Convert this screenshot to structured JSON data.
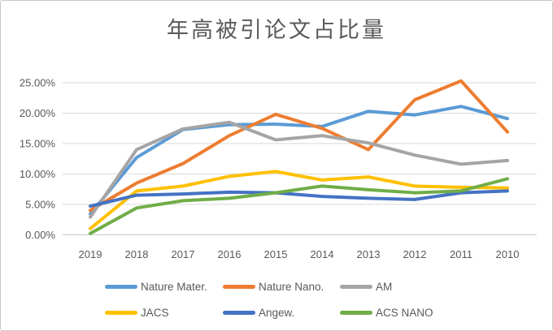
{
  "window": {
    "background": "#ffffff",
    "border_color": "#c9c9c9"
  },
  "chart_data": {
    "type": "line",
    "title": "年高被引论文占比量",
    "x": [
      "2019",
      "2018",
      "2017",
      "2016",
      "2015",
      "2014",
      "2013",
      "2012",
      "2011",
      "2010"
    ],
    "xlabel": "",
    "ylabel": "",
    "y_axis": {
      "min": 0,
      "max": 25,
      "tick_values": [
        0,
        5,
        10,
        15,
        20,
        25
      ],
      "tick_labels": [
        "0.00%",
        "5.00%",
        "10.00%",
        "15.00%",
        "20.00%",
        "25.00%"
      ],
      "grid": true,
      "unit": "percent"
    },
    "legend_position": "bottom",
    "text_color": "#595959",
    "gridline_color": "#d9d9d9",
    "series": [
      {
        "name": "Nature Mater.",
        "color": "#5B9BD5",
        "values": [
          3.4,
          12.7,
          17.3,
          18.1,
          18.2,
          17.8,
          20.3,
          19.7,
          21.1,
          19.1
        ]
      },
      {
        "name": "Nature Nano.",
        "color": "#ED7D31",
        "values": [
          4.0,
          8.5,
          11.7,
          16.3,
          19.8,
          17.5,
          14.0,
          22.2,
          25.3,
          16.9
        ]
      },
      {
        "name": "AM",
        "color": "#A5A5A5",
        "values": [
          2.9,
          14.0,
          17.4,
          18.5,
          15.6,
          16.3,
          15.1,
          13.1,
          11.6,
          12.2
        ]
      },
      {
        "name": "JACS",
        "color": "#FFC000",
        "values": [
          1.0,
          7.2,
          8.0,
          9.6,
          10.4,
          9.0,
          9.5,
          8.0,
          7.8,
          7.7
        ]
      },
      {
        "name": "Angew.",
        "color": "#4472C4",
        "values": [
          4.7,
          6.5,
          6.7,
          7.0,
          6.9,
          6.3,
          6.0,
          5.8,
          6.9,
          7.2
        ]
      },
      {
        "name": "ACS NANO",
        "color": "#70AD47",
        "values": [
          0.2,
          4.4,
          5.6,
          6.0,
          6.9,
          8.0,
          7.4,
          6.9,
          7.2,
          9.2
        ]
      }
    ]
  }
}
